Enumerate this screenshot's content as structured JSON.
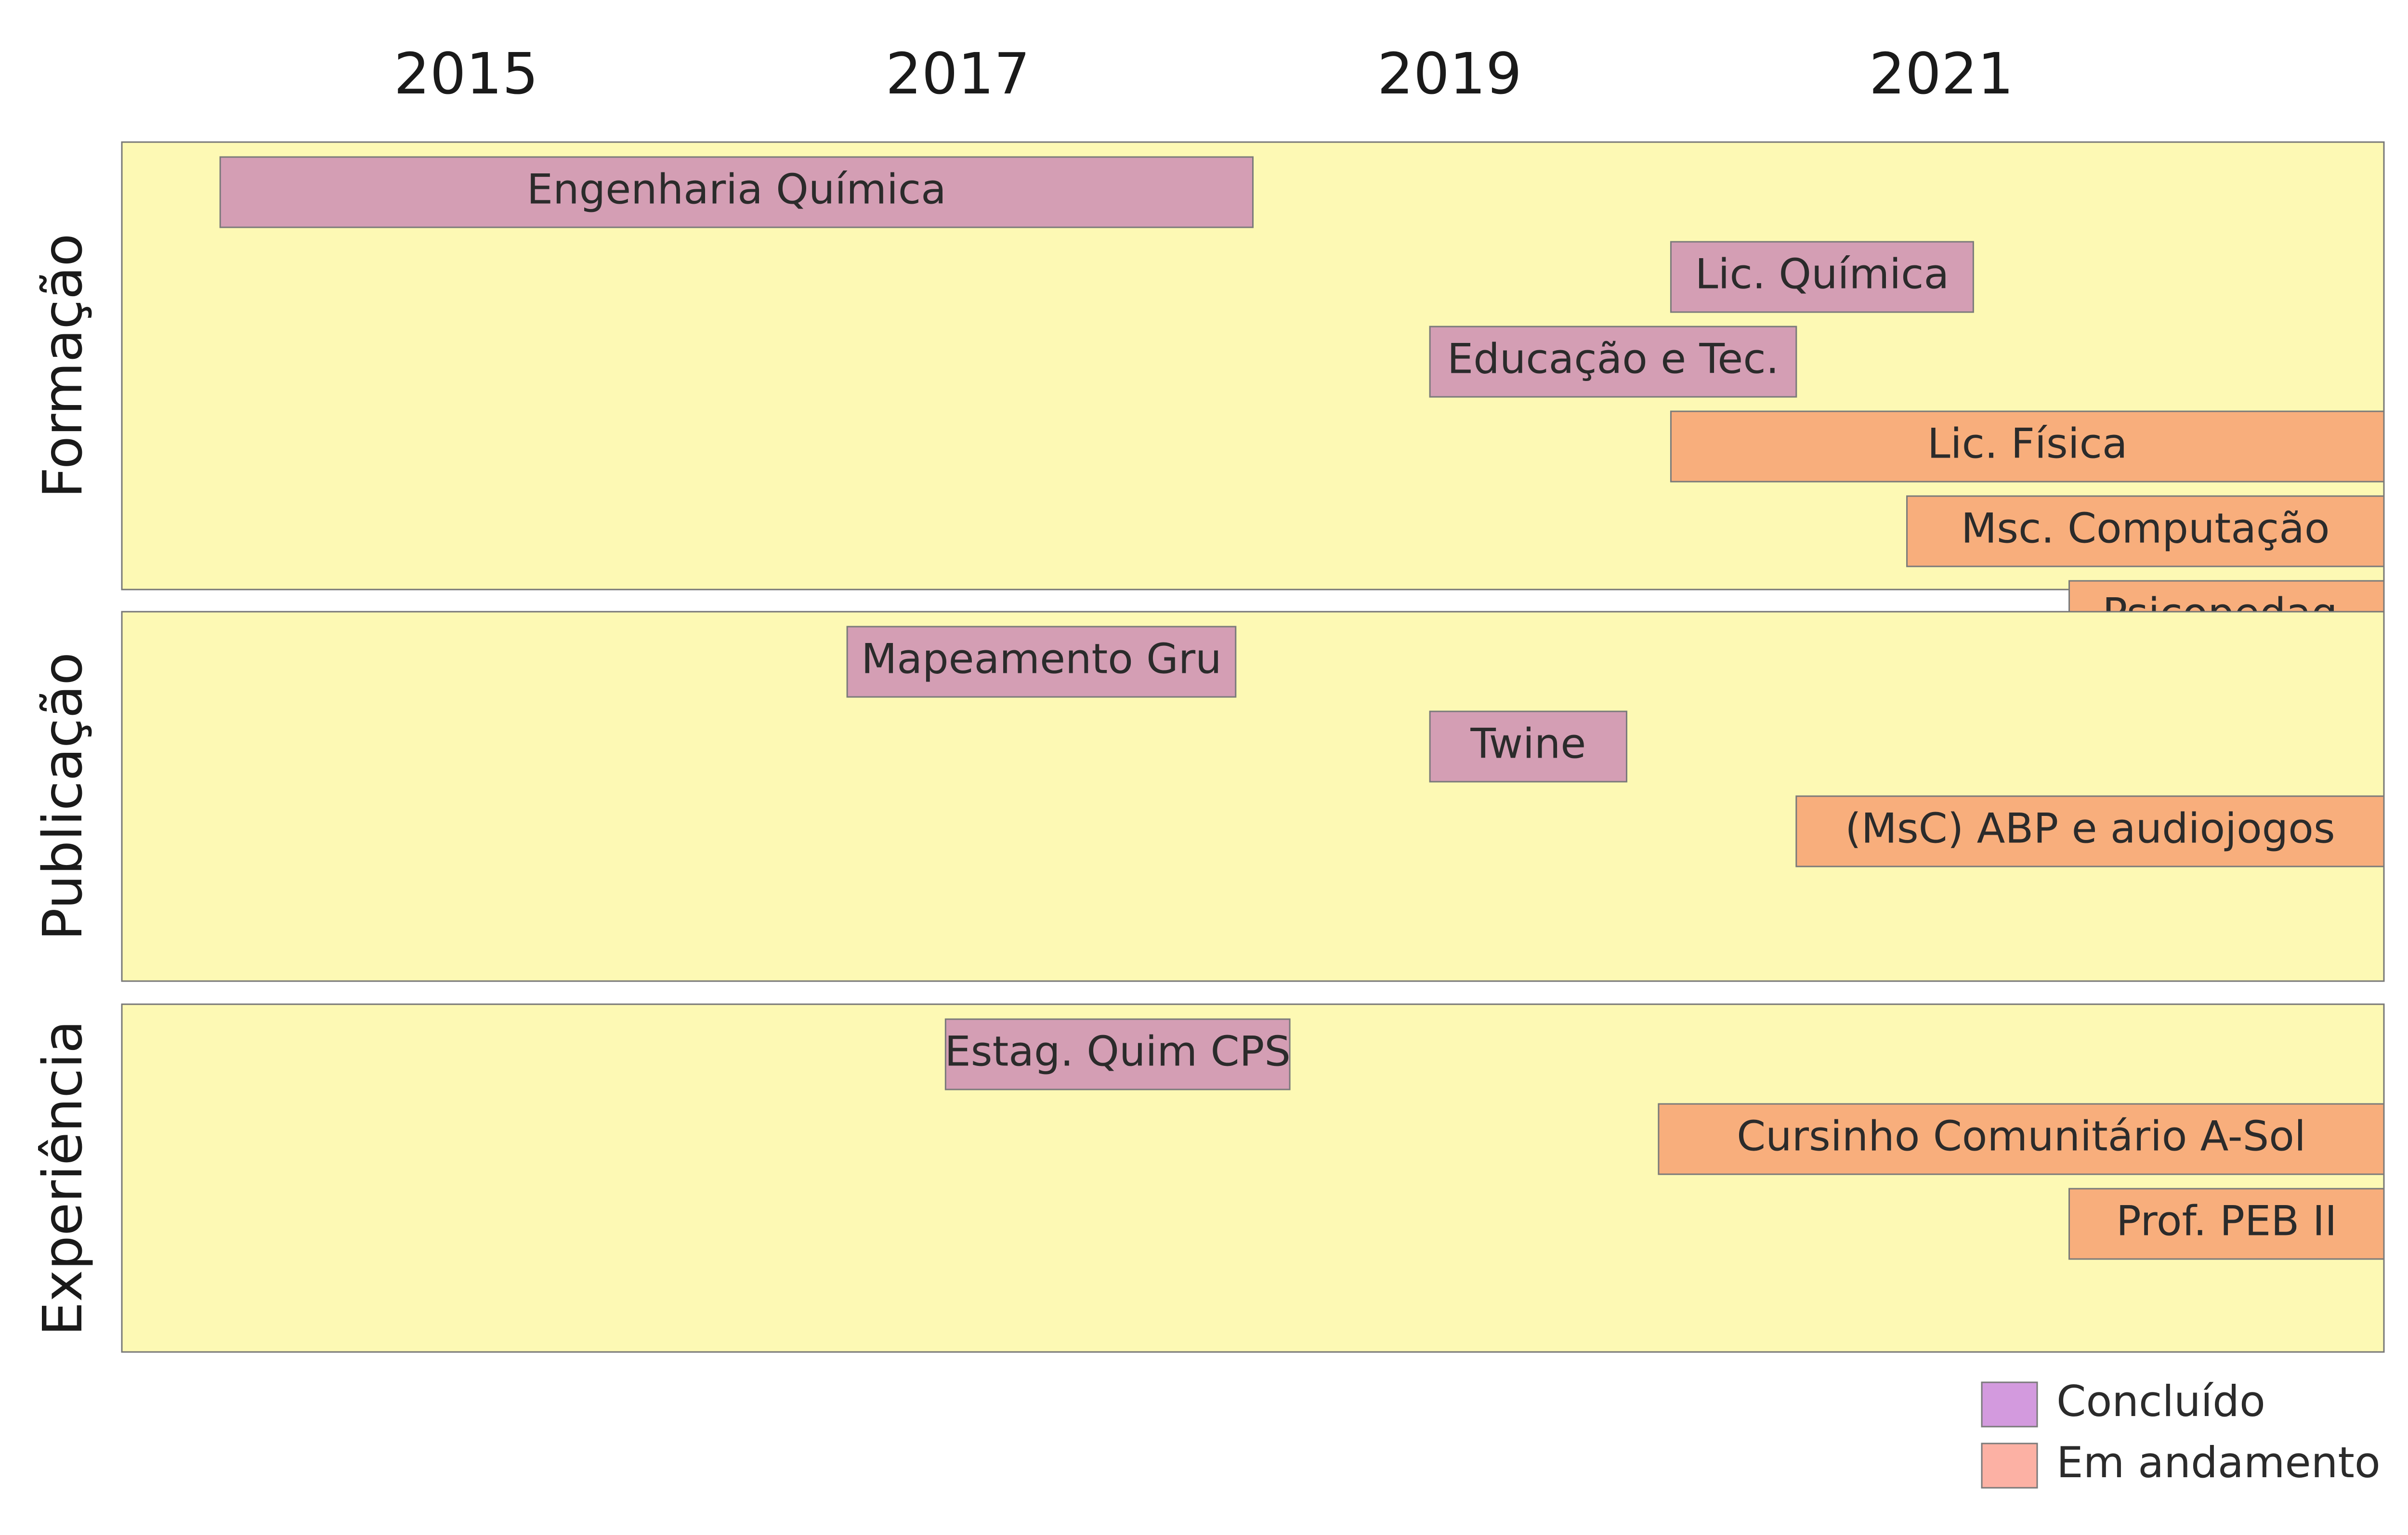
{
  "chart_data": {
    "type": "timeline",
    "x_ticks": [
      2015,
      2017,
      2019,
      2021
    ],
    "xlim": [
      2013.6,
      2022.8
    ],
    "colors": {
      "panel_bg": "#fdf9b4",
      "concluido_bar": "#d49eb4",
      "andamento_bar": "#f8ae7c",
      "concluido_legend": "#d39ade",
      "andamento_legend": "#fcb1a4"
    },
    "legend": {
      "position": "bottom-right",
      "items": [
        {
          "status": "concluido",
          "label": "Concluído"
        },
        {
          "status": "andamento",
          "label": "Em andamento"
        }
      ]
    },
    "sections": [
      {
        "name": "Formação",
        "tasks": [
          {
            "label": "Engenharia Química",
            "start": 2014.0,
            "end": 2018.2,
            "status": "concluido"
          },
          {
            "label": "Lic. Química",
            "start": 2019.9,
            "end": 2021.13,
            "status": "concluido"
          },
          {
            "label": "Educação e Tec.",
            "start": 2018.92,
            "end": 2020.41,
            "status": "concluido"
          },
          {
            "label": "Lic. Física",
            "start": 2019.9,
            "end": 2022.8,
            "status": "andamento"
          },
          {
            "label": "Msc. Computação",
            "start": 2020.86,
            "end": 2022.8,
            "status": "andamento"
          },
          {
            "label": "Psicopedag.",
            "start": 2021.52,
            "end": 2022.8,
            "status": "andamento"
          }
        ]
      },
      {
        "name": "Publicação",
        "tasks": [
          {
            "label": "Mapeamento Gru",
            "start": 2016.55,
            "end": 2018.13,
            "status": "concluido"
          },
          {
            "label": "Twine",
            "start": 2018.92,
            "end": 2019.72,
            "status": "concluido"
          },
          {
            "label": "(MsC) ABP e audiojogos",
            "start": 2020.41,
            "end": 2022.8,
            "status": "andamento"
          }
        ]
      },
      {
        "name": "Experiência",
        "tasks": [
          {
            "label": "Estag. Quim CPS",
            "start": 2016.95,
            "end": 2018.35,
            "status": "concluido"
          },
          {
            "label": "Cursinho Comunitário A-Sol",
            "start": 2019.85,
            "end": 2022.8,
            "status": "andamento"
          },
          {
            "label": "Prof. PEB II",
            "start": 2021.52,
            "end": 2022.8,
            "status": "andamento"
          }
        ]
      }
    ]
  }
}
